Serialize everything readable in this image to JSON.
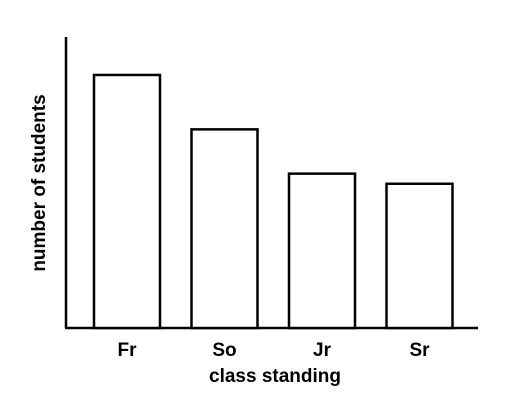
{
  "chart_data": {
    "type": "bar",
    "title": "",
    "xlabel": "class standing",
    "ylabel": "number of students",
    "categories": [
      "Fr",
      "So",
      "Jr",
      "Sr"
    ],
    "values": [
      100,
      78.5,
      61,
      57
    ],
    "ylim": [
      0,
      115
    ],
    "grid": false,
    "y_ticks_shown": false,
    "colors": {
      "bar_fill": "#ffffff",
      "bar_stroke": "#000000",
      "axis": "#000000"
    }
  }
}
